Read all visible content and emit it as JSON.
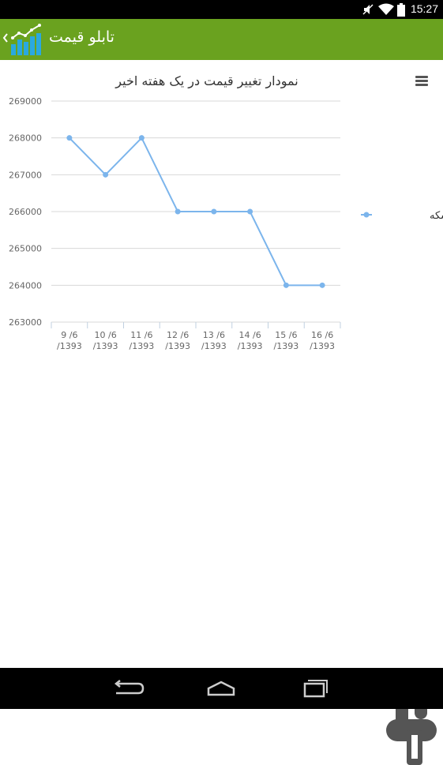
{
  "status_bar": {
    "time": "15:27",
    "icons": [
      "mute-icon",
      "wifi-icon",
      "battery-icon"
    ]
  },
  "action_bar": {
    "title": "تابلو قیمت",
    "up_icon": "chevron-left-icon",
    "logo_icon": "chart-logo-icon",
    "color": "#6aa21f"
  },
  "menu": {
    "icon": "hamburger-menu-icon"
  },
  "chart_data": {
    "type": "line",
    "title": "نمودار تغییر قیمت در یک هفته اخیر",
    "categories": [
      [
        "9 /6",
        "/1393"
      ],
      [
        "10 /6",
        "/1393"
      ],
      [
        "11 /6",
        "/1393"
      ],
      [
        "12 /6",
        "/1393"
      ],
      [
        "13 /6",
        "/1393"
      ],
      [
        "14 /6",
        "/1393"
      ],
      [
        "15 /6",
        "/1393"
      ],
      [
        "16 /6",
        "/1393"
      ]
    ],
    "series": [
      {
        "name": "قیمت ربع سکه",
        "values": [
          268000,
          267000,
          268000,
          266000,
          266000,
          266000,
          264000,
          264000
        ],
        "color": "#7cb5ec"
      }
    ],
    "yticks": [
      "263000",
      "264000",
      "265000",
      "266000",
      "267000",
      "268000",
      "269000"
    ],
    "ylim": [
      263000,
      269000
    ],
    "grid": true,
    "legend": "right"
  },
  "nav_bar": {
    "buttons": [
      "back-icon",
      "home-icon",
      "recents-icon"
    ]
  }
}
